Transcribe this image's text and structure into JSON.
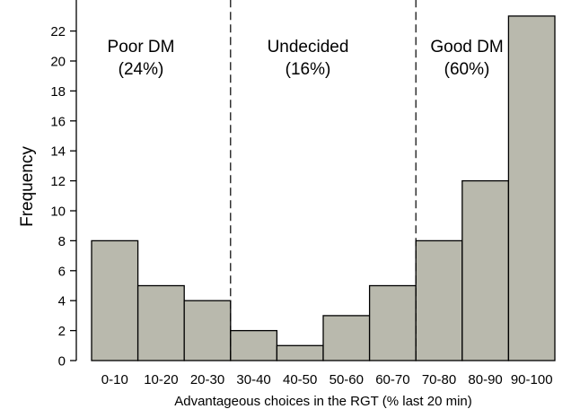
{
  "chart_data": {
    "type": "bar",
    "title": "",
    "xlabel": "Advantageous choices in the RGT (% last 20 min)",
    "ylabel": "Frequency",
    "categories": [
      "0-10",
      "10-20",
      "20-30",
      "30-40",
      "40-50",
      "50-60",
      "60-70",
      "70-80",
      "80-90",
      "90-100"
    ],
    "values": [
      8,
      5,
      4,
      2,
      1,
      3,
      5,
      8,
      12,
      23
    ],
    "ylim": [
      0,
      24
    ],
    "yticks": [
      0,
      2,
      4,
      6,
      8,
      10,
      12,
      14,
      16,
      18,
      20,
      22
    ],
    "grid": false,
    "bar_color": "#b9b9ad",
    "dividers_after_category": [
      "20-30",
      "60-70"
    ],
    "groups": [
      {
        "name": "Poor DM",
        "percent": "(24%)"
      },
      {
        "name": "Undecided",
        "percent": "(16%)"
      },
      {
        "name": "Good DM",
        "percent": "(60%)"
      }
    ]
  }
}
